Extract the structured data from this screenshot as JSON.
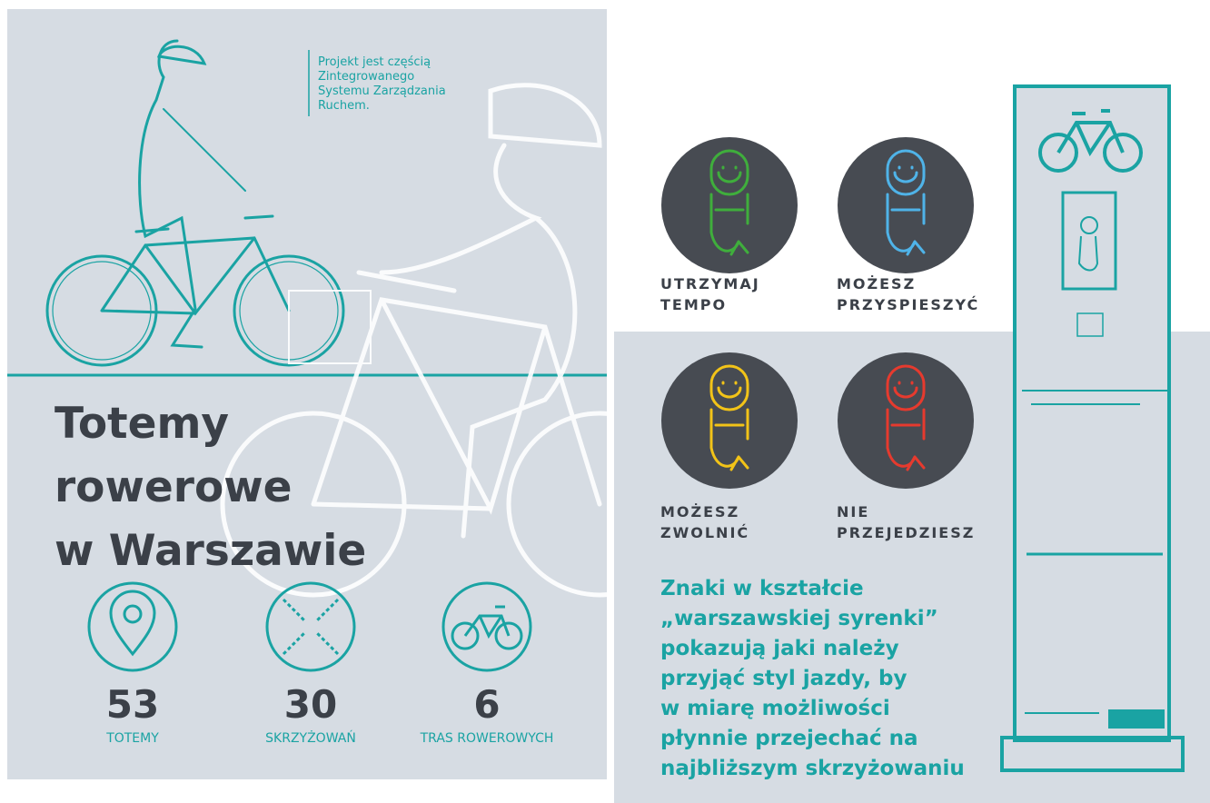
{
  "note": {
    "lines": [
      "Projekt jest częścią",
      "Zintegrowanego",
      "Systemu Zarządzania",
      "Ruchem."
    ]
  },
  "title": {
    "lines": [
      "Totemy",
      "rowerowe",
      "w Warszawie"
    ]
  },
  "stats": [
    {
      "value": 53,
      "label": "TOTEMY"
    },
    {
      "value": 30,
      "label": "SKRZYŻOWAŃ"
    },
    {
      "value": 6,
      "label": "TRAS ROWEROWYCH"
    }
  ],
  "signs": [
    {
      "lines": [
        "UTRZYMAJ",
        "TEMPO"
      ],
      "color": "#3fae3c"
    },
    {
      "lines": [
        "MOŻESZ",
        "PRZYSPIESZYĆ"
      ],
      "color": "#4fb3e8"
    },
    {
      "lines": [
        "MOŻESZ",
        "ZWOLNIĆ"
      ],
      "color": "#f2c318"
    },
    {
      "lines": [
        "NIE",
        "PRZEJEDZIESZ"
      ],
      "color": "#e63a2e"
    }
  ],
  "description": {
    "lines": [
      "Znaki w kształcie",
      "„warszawskiej syrenki”",
      "pokazują jaki należy",
      "przyjąć styl jazdy, by",
      "w miarę możliwości",
      "płynnie przejechać na",
      "najbliższym skrzyżowaniu"
    ]
  }
}
